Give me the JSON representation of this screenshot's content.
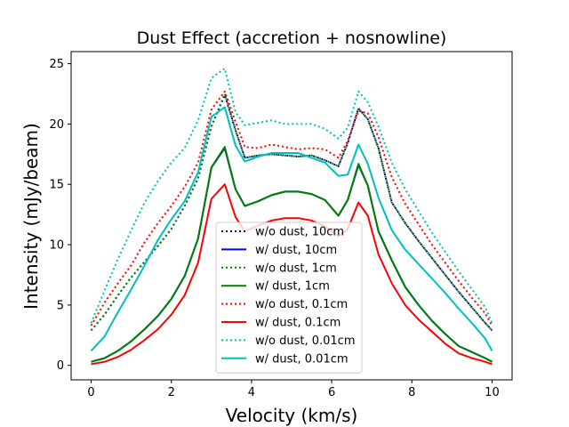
{
  "chart_data": {
    "type": "line",
    "title": "Dust Effect (accretion + nosnowline)",
    "xlabel": "Velocity (km/s)",
    "ylabel": "Intensity (mJy/beam)",
    "xlim": [
      -0.5,
      10.5
    ],
    "ylim": [
      -1.2,
      26.0
    ],
    "xticks": [
      "0",
      "2",
      "4",
      "6",
      "8",
      "10"
    ],
    "yticks": [
      "0",
      "5",
      "10",
      "15",
      "20",
      "25"
    ],
    "legend_position": "lower center",
    "x": [
      0,
      0.333,
      0.667,
      1.0,
      1.333,
      1.667,
      2.0,
      2.333,
      2.667,
      3.0,
      3.333,
      3.6,
      3.833,
      4.167,
      4.5,
      4.833,
      5.167,
      5.5,
      5.833,
      6.167,
      6.4,
      6.667,
      6.9,
      7.167,
      7.5,
      7.833,
      8.167,
      8.5,
      8.833,
      9.167,
      9.5,
      9.833,
      10.0
    ],
    "series": [
      {
        "name": "w/o dust, 10cm",
        "color": "#00008b",
        "dash": "dotted",
        "values": [
          2.9,
          4.2,
          5.8,
          7.3,
          8.6,
          9.9,
          11.3,
          13.2,
          15.5,
          19.8,
          22.4,
          19.5,
          17.2,
          17.4,
          17.5,
          17.4,
          17.3,
          17.4,
          17.0,
          16.5,
          18.4,
          21.3,
          20.4,
          18.0,
          13.5,
          11.8,
          10.3,
          8.9,
          7.5,
          6.1,
          4.8,
          3.5,
          2.9
        ]
      },
      {
        "name": "w/ dust, 10cm",
        "color": "#0000ff",
        "dash": "solid",
        "values": [
          0.3,
          0.6,
          1.2,
          2.0,
          3.0,
          4.1,
          5.5,
          7.4,
          10.5,
          16.4,
          18.0,
          14.6,
          13.2,
          13.6,
          14.1,
          14.4,
          14.4,
          14.2,
          13.7,
          12.4,
          13.7,
          16.6,
          14.9,
          11.1,
          8.7,
          6.5,
          5.0,
          3.7,
          2.6,
          1.6,
          1.1,
          0.6,
          0.3
        ]
      },
      {
        "name": "w/o dust, 1cm",
        "color": "#008000",
        "dash": "dotted",
        "values": [
          2.9,
          4.2,
          5.8,
          7.3,
          8.6,
          9.9,
          11.3,
          13.2,
          15.5,
          19.8,
          22.5,
          19.5,
          17.2,
          17.4,
          17.5,
          17.4,
          17.3,
          17.4,
          17.0,
          16.5,
          18.5,
          21.3,
          20.4,
          18.0,
          13.5,
          11.8,
          10.3,
          8.9,
          7.5,
          6.1,
          4.8,
          3.5,
          2.9
        ]
      },
      {
        "name": "w/ dust, 1cm",
        "color": "#008000",
        "dash": "solid",
        "values": [
          0.3,
          0.6,
          1.2,
          2.0,
          3.0,
          4.1,
          5.5,
          7.4,
          10.5,
          16.4,
          18.1,
          14.6,
          13.2,
          13.6,
          14.1,
          14.4,
          14.4,
          14.2,
          13.7,
          12.4,
          13.7,
          16.7,
          14.9,
          11.1,
          8.7,
          6.5,
          5.0,
          3.7,
          2.6,
          1.6,
          1.1,
          0.6,
          0.3
        ]
      },
      {
        "name": "w/o dust, 0.1cm",
        "color": "#ff0000",
        "dash": "dotted",
        "values": [
          3.3,
          5.2,
          6.8,
          8.3,
          10.2,
          11.8,
          13.2,
          14.8,
          16.8,
          21.2,
          22.7,
          20.2,
          18.1,
          18.0,
          18.3,
          18.1,
          17.9,
          18.0,
          17.9,
          17.2,
          18.6,
          21.1,
          20.9,
          18.9,
          15.6,
          13.4,
          11.7,
          10.0,
          8.5,
          7.0,
          5.6,
          4.3,
          3.3
        ]
      },
      {
        "name": "w/ dust, 0.1cm",
        "color": "#ff0000",
        "dash": "solid",
        "values": [
          0.1,
          0.3,
          0.7,
          1.3,
          2.1,
          3.0,
          4.2,
          5.8,
          8.5,
          13.8,
          15.0,
          12.3,
          11.1,
          11.6,
          12.0,
          12.2,
          12.2,
          12.0,
          11.5,
          10.7,
          11.3,
          13.5,
          12.4,
          9.2,
          6.8,
          5.0,
          3.8,
          2.8,
          1.8,
          1.0,
          0.6,
          0.3,
          0.1
        ]
      },
      {
        "name": "w/o dust, 0.01cm",
        "color": "#00bfbf",
        "dash": "dotted",
        "values": [
          3.5,
          6.2,
          8.8,
          11.2,
          13.5,
          15.3,
          16.8,
          18.0,
          20.3,
          23.8,
          24.6,
          21.0,
          19.9,
          20.1,
          20.3,
          20.0,
          20.0,
          20.0,
          19.6,
          18.8,
          19.7,
          22.7,
          21.8,
          19.8,
          16.8,
          14.6,
          12.8,
          11.0,
          9.4,
          7.8,
          6.3,
          4.8,
          3.5
        ]
      },
      {
        "name": "w/ dust, 0.01cm",
        "color": "#00bfbf",
        "dash": "solid",
        "values": [
          1.2,
          2.4,
          4.4,
          6.3,
          8.3,
          10.4,
          12.1,
          13.6,
          16.0,
          20.6,
          21.4,
          18.2,
          16.9,
          17.3,
          17.6,
          17.6,
          17.6,
          17.2,
          16.8,
          15.7,
          15.8,
          18.3,
          16.7,
          13.9,
          11.2,
          9.6,
          8.4,
          7.2,
          6.0,
          4.7,
          3.5,
          2.2,
          1.2
        ]
      }
    ]
  }
}
